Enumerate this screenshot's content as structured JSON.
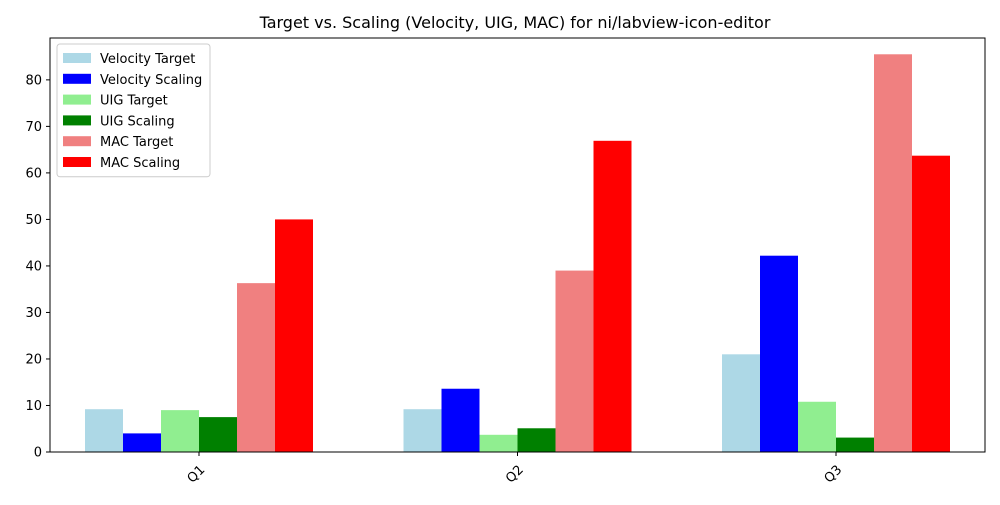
{
  "chart_data": {
    "type": "bar",
    "title": "Target vs. Scaling (Velocity, UIG, MAC) for ni/labview-icon-editor",
    "xlabel": "",
    "ylabel": "",
    "categories": [
      "Q1",
      "Q2",
      "Q3"
    ],
    "ylim": [
      0,
      89
    ],
    "yticks": [
      0,
      10,
      20,
      30,
      40,
      50,
      60,
      70,
      80
    ],
    "grid": false,
    "legend_position": "top-left",
    "series": [
      {
        "name": "Velocity Target",
        "color": "#add8e6",
        "values": [
          9.2,
          9.2,
          21.0
        ]
      },
      {
        "name": "Velocity Scaling",
        "color": "#0000ff",
        "values": [
          4.0,
          13.6,
          42.2
        ]
      },
      {
        "name": "UIG Target",
        "color": "#90ee90",
        "values": [
          9.0,
          3.7,
          10.8
        ]
      },
      {
        "name": "UIG Scaling",
        "color": "#008000",
        "values": [
          7.5,
          5.1,
          3.1
        ]
      },
      {
        "name": "MAC Target",
        "color": "#f08080",
        "values": [
          36.3,
          39.0,
          85.5
        ]
      },
      {
        "name": "MAC Scaling",
        "color": "#ff0000",
        "values": [
          50.0,
          66.9,
          63.7
        ]
      }
    ]
  }
}
